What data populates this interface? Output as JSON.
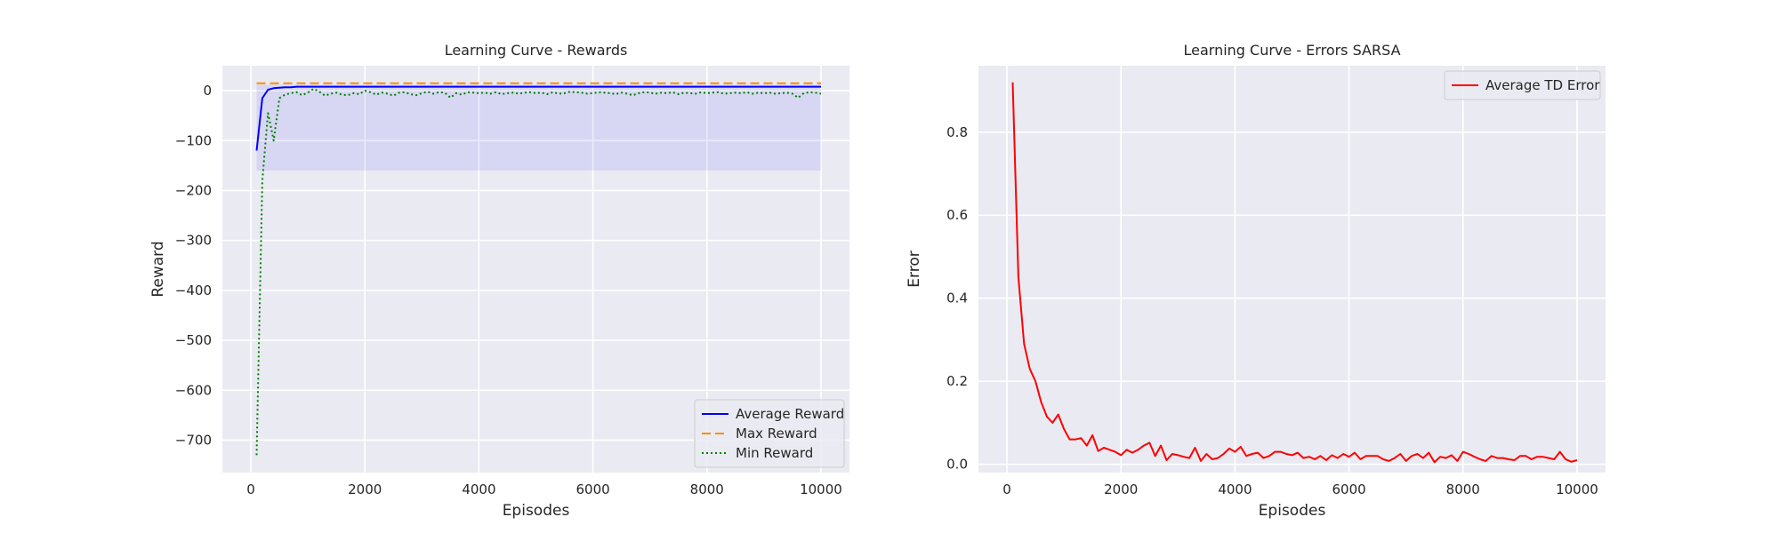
{
  "chart_data": [
    {
      "type": "line",
      "title": "Learning Curve - Rewards",
      "xlabel": "Episodes",
      "ylabel": "Reward",
      "xlim": [
        -500,
        10500
      ],
      "ylim": [
        -765,
        50
      ],
      "xticks": [
        0,
        2000,
        4000,
        6000,
        8000,
        10000
      ],
      "xtick_labels": [
        "0",
        "2000",
        "4000",
        "6000",
        "8000",
        "10000"
      ],
      "yticks": [
        -700,
        -600,
        -500,
        -400,
        -300,
        -200,
        -100,
        0
      ],
      "ytick_labels": [
        "−700",
        "−600",
        "−500",
        "−400",
        "−300",
        "−200",
        "−100",
        "0"
      ],
      "grid": true,
      "legend_position": "lower-right",
      "x": [
        100,
        200,
        300,
        400,
        500,
        600,
        700,
        800,
        900,
        1000,
        1100,
        1200,
        1300,
        1400,
        1500,
        1600,
        1700,
        1800,
        1900,
        2000,
        2100,
        2200,
        2300,
        2400,
        2500,
        2600,
        2700,
        2800,
        2900,
        3000,
        3100,
        3200,
        3300,
        3400,
        3500,
        3600,
        3700,
        3800,
        3900,
        4000,
        4100,
        4200,
        4300,
        4400,
        4500,
        4600,
        4700,
        4800,
        4900,
        5000,
        5100,
        5200,
        5300,
        5400,
        5500,
        5600,
        5700,
        5800,
        5900,
        6000,
        6100,
        6200,
        6300,
        6400,
        6500,
        6600,
        6700,
        6800,
        6900,
        7000,
        7100,
        7200,
        7300,
        7400,
        7500,
        7600,
        7700,
        7800,
        7900,
        8000,
        8100,
        8200,
        8300,
        8400,
        8500,
        8600,
        8700,
        8800,
        8900,
        9000,
        9100,
        9200,
        9300,
        9400,
        9500,
        9600,
        9700,
        9800,
        9900,
        10000
      ],
      "series": [
        {
          "name": "Average Reward",
          "color": "#0000ff",
          "style": "solid",
          "band": [
            -160,
            12
          ],
          "values": [
            -120,
            -15,
            2,
            5,
            6,
            7,
            7,
            8,
            8,
            8,
            8,
            8,
            8,
            8,
            8,
            8,
            8,
            8,
            8,
            8,
            8,
            8,
            8,
            8,
            8,
            8,
            8,
            8,
            8,
            8,
            8,
            8,
            8,
            8,
            8,
            8,
            8,
            8,
            8,
            8,
            8,
            8,
            8,
            8,
            8,
            8,
            8,
            8,
            8,
            8,
            8,
            8,
            8,
            8,
            8,
            8,
            8,
            8,
            8,
            8,
            8,
            8,
            8,
            8,
            8,
            8,
            8,
            8,
            8,
            8,
            8,
            8,
            8,
            8,
            8,
            8,
            8,
            8,
            8,
            8,
            8,
            8,
            8,
            8,
            8,
            8,
            8,
            8,
            8,
            8,
            8,
            8,
            8,
            8,
            8,
            8,
            8,
            8,
            8,
            8
          ]
        },
        {
          "name": "Max Reward",
          "color": "#ff8c00",
          "style": "dashed",
          "values": [
            15,
            15,
            15,
            15,
            15,
            15,
            15,
            15,
            15,
            15,
            15,
            15,
            15,
            15,
            15,
            15,
            15,
            15,
            15,
            15,
            15,
            15,
            15,
            15,
            15,
            15,
            15,
            15,
            15,
            15,
            15,
            15,
            15,
            15,
            15,
            15,
            15,
            15,
            15,
            15,
            15,
            15,
            15,
            15,
            15,
            15,
            15,
            15,
            15,
            15,
            15,
            15,
            15,
            15,
            15,
            15,
            15,
            15,
            15,
            15,
            15,
            15,
            15,
            15,
            15,
            15,
            15,
            15,
            15,
            15,
            15,
            15,
            15,
            15,
            15,
            15,
            15,
            15,
            15,
            15,
            15,
            15,
            15,
            15,
            15,
            15,
            15,
            15,
            15,
            15,
            15,
            15,
            15,
            15,
            15,
            15,
            15,
            15,
            15,
            15
          ]
        },
        {
          "name": "Min Reward",
          "color": "#008000",
          "style": "dotted",
          "values": [
            -730,
            -180,
            -45,
            -100,
            -15,
            -8,
            -5,
            -3,
            -9,
            -4,
            4,
            -2,
            -10,
            -6,
            -4,
            -8,
            -9,
            -5,
            -7,
            0,
            -3,
            -8,
            -4,
            -6,
            -10,
            -4,
            -3,
            -7,
            -9,
            -5,
            -2,
            -6,
            -3,
            -4,
            -14,
            -5,
            -8,
            -3,
            -4,
            -5,
            -4,
            -6,
            -3,
            -7,
            -5,
            -4,
            -6,
            -4,
            -3,
            -5,
            -4,
            -7,
            -3,
            -6,
            -5,
            -2,
            -3,
            -4,
            -6,
            -5,
            -3,
            -4,
            -5,
            -7,
            -4,
            -6,
            -9,
            -5,
            -3,
            -4,
            -6,
            -4,
            -5,
            -3,
            -7,
            -4,
            -5,
            -6,
            -3,
            -5,
            -4,
            -3,
            -6,
            -5,
            -4,
            -5,
            -3,
            -6,
            -4,
            -5,
            -4,
            -6,
            -5,
            -4,
            -6,
            -14,
            -5,
            -3,
            -4,
            -6
          ]
        }
      ]
    },
    {
      "type": "line",
      "title": "Learning Curve - Errors SARSA",
      "xlabel": "Episodes",
      "ylabel": "Error",
      "xlim": [
        -500,
        10500
      ],
      "ylim": [
        -0.02,
        0.96
      ],
      "xticks": [
        0,
        2000,
        4000,
        6000,
        8000,
        10000
      ],
      "xtick_labels": [
        "0",
        "2000",
        "4000",
        "6000",
        "8000",
        "10000"
      ],
      "yticks": [
        0.0,
        0.2,
        0.4,
        0.6,
        0.8
      ],
      "ytick_labels": [
        "0.0",
        "0.2",
        "0.4",
        "0.6",
        "0.8"
      ],
      "grid": true,
      "legend_position": "upper-right",
      "x": [
        100,
        200,
        300,
        400,
        500,
        600,
        700,
        800,
        900,
        1000,
        1100,
        1200,
        1300,
        1400,
        1500,
        1600,
        1700,
        1800,
        1900,
        2000,
        2100,
        2200,
        2300,
        2400,
        2500,
        2600,
        2700,
        2800,
        2900,
        3000,
        3100,
        3200,
        3300,
        3400,
        3500,
        3600,
        3700,
        3800,
        3900,
        4000,
        4100,
        4200,
        4300,
        4400,
        4500,
        4600,
        4700,
        4800,
        4900,
        5000,
        5100,
        5200,
        5300,
        5400,
        5500,
        5600,
        5700,
        5800,
        5900,
        6000,
        6100,
        6200,
        6300,
        6400,
        6500,
        6600,
        6700,
        6800,
        6900,
        7000,
        7100,
        7200,
        7300,
        7400,
        7500,
        7600,
        7700,
        7800,
        7900,
        8000,
        8100,
        8200,
        8300,
        8400,
        8500,
        8600,
        8700,
        8800,
        8900,
        9000,
        9100,
        9200,
        9300,
        9400,
        9500,
        9600,
        9700,
        9800,
        9900,
        10000
      ],
      "series": [
        {
          "name": "Average TD Error",
          "color": "#ff0000",
          "style": "solid",
          "values": [
            0.92,
            0.45,
            0.29,
            0.23,
            0.2,
            0.15,
            0.115,
            0.1,
            0.12,
            0.085,
            0.06,
            0.06,
            0.063,
            0.045,
            0.07,
            0.032,
            0.04,
            0.035,
            0.03,
            0.022,
            0.035,
            0.028,
            0.035,
            0.045,
            0.052,
            0.02,
            0.045,
            0.01,
            0.025,
            0.022,
            0.018,
            0.015,
            0.04,
            0.008,
            0.025,
            0.012,
            0.015,
            0.025,
            0.038,
            0.03,
            0.042,
            0.02,
            0.025,
            0.028,
            0.015,
            0.02,
            0.03,
            0.03,
            0.025,
            0.022,
            0.028,
            0.015,
            0.018,
            0.012,
            0.02,
            0.01,
            0.022,
            0.015,
            0.025,
            0.018,
            0.028,
            0.012,
            0.02,
            0.02,
            0.02,
            0.012,
            0.008,
            0.015,
            0.025,
            0.008,
            0.02,
            0.025,
            0.015,
            0.028,
            0.005,
            0.018,
            0.015,
            0.022,
            0.008,
            0.03,
            0.025,
            0.018,
            0.012,
            0.008,
            0.02,
            0.015,
            0.015,
            0.012,
            0.01,
            0.02,
            0.02,
            0.012,
            0.018,
            0.018,
            0.015,
            0.012,
            0.03,
            0.012,
            0.006,
            0.01
          ]
        }
      ]
    }
  ]
}
